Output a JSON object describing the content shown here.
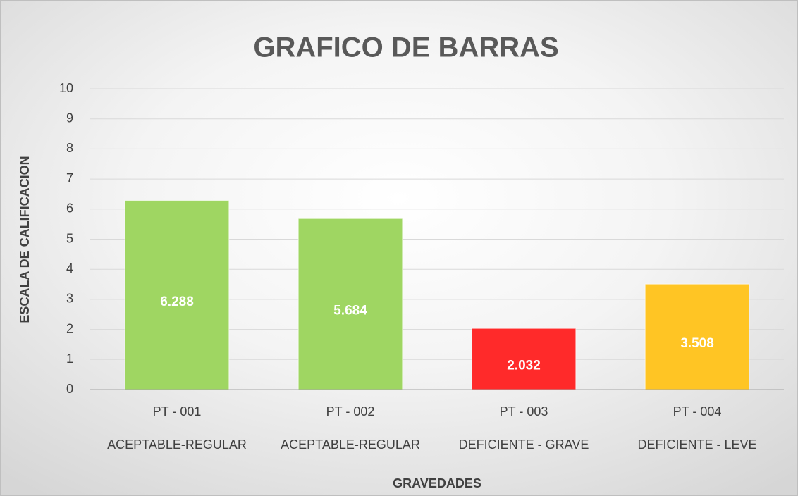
{
  "chart_data": {
    "type": "bar",
    "title": "GRAFICO DE BARRAS",
    "y_label": "ESCALA DE CALIFICACION",
    "x_label": "GRAVEDADES",
    "categories": [
      "PT - 001",
      "PT - 002",
      "PT - 003",
      "PT - 004"
    ],
    "subcategories": [
      "ACEPTABLE-REGULAR",
      "ACEPTABLE-REGULAR",
      "DEFICIENTE - GRAVE",
      "DEFICIENTE - LEVE"
    ],
    "values": [
      6.288,
      5.684,
      2.032,
      3.508
    ],
    "colors": [
      "#9fd662",
      "#9fd662",
      "#ff2a2a",
      "#ffc524"
    ],
    "ylim": [
      0,
      10
    ],
    "yticks": [
      0,
      1,
      2,
      3,
      4,
      5,
      6,
      7,
      8,
      9,
      10
    ],
    "grid": true
  }
}
